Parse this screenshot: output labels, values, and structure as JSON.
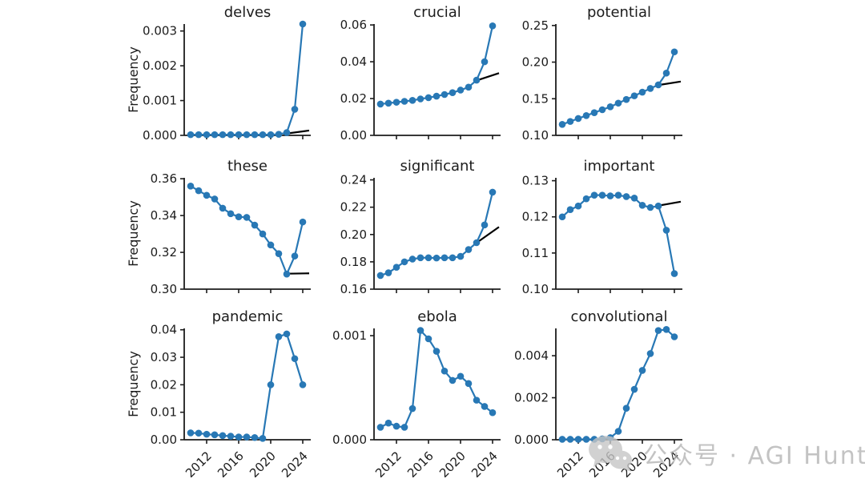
{
  "figure": {
    "ylabel": "Frequency",
    "xticks": [
      2012,
      2016,
      2020,
      2024
    ],
    "xticklabels": [
      "2012",
      "2016",
      "2020",
      "2024"
    ],
    "xlim": [
      2009.2,
      2025
    ],
    "colors": {
      "line": "#2878b5",
      "marker": "#2878b5",
      "trend": "#000000",
      "text": "#1c1c1c",
      "watermark": "#b5b5b5",
      "watermark_icon": "#c6c6c6",
      "background": "#ffffff"
    }
  },
  "watermark": {
    "icon": "wechat-icon",
    "text": "公众号 · AGI Hunt"
  },
  "chart_data": [
    {
      "type": "line",
      "title": "delves",
      "ylabel": "Frequency",
      "x": [
        2010,
        2011,
        2012,
        2013,
        2014,
        2015,
        2016,
        2017,
        2018,
        2019,
        2020,
        2021,
        2022,
        2023,
        2024
      ],
      "values": [
        2e-05,
        2e-05,
        2e-05,
        2e-05,
        2e-05,
        2e-05,
        2e-05,
        2e-05,
        2e-05,
        2e-05,
        2e-05,
        3e-05,
        8e-05,
        0.00075,
        0.0032
      ],
      "yticks": [
        0.0,
        0.001,
        0.002,
        0.003
      ],
      "yticklabels": [
        "0.000",
        "0.001",
        "0.002",
        "0.003"
      ],
      "ylim": [
        0,
        0.0032
      ],
      "trend": [
        [
          2021.6,
          4e-05
        ],
        [
          2024.8,
          0.00014
        ]
      ],
      "show_xticklabels": false
    },
    {
      "type": "line",
      "title": "crucial",
      "ylabel": "",
      "x": [
        2010,
        2011,
        2012,
        2013,
        2014,
        2015,
        2016,
        2017,
        2018,
        2019,
        2020,
        2021,
        2022,
        2023,
        2024
      ],
      "values": [
        0.017,
        0.0175,
        0.018,
        0.0185,
        0.019,
        0.0198,
        0.0205,
        0.0213,
        0.0222,
        0.0232,
        0.0246,
        0.0262,
        0.03,
        0.04,
        0.0595
      ],
      "yticks": [
        0.0,
        0.02,
        0.04,
        0.06
      ],
      "yticklabels": [
        "0.00",
        "0.02",
        "0.04",
        "0.06"
      ],
      "ylim": [
        0,
        0.0605
      ],
      "trend": [
        [
          2021.8,
          0.0295
        ],
        [
          2024.8,
          0.0338
        ]
      ],
      "show_xticklabels": false
    },
    {
      "type": "line",
      "title": "potential",
      "ylabel": "",
      "x": [
        2010,
        2011,
        2012,
        2013,
        2014,
        2015,
        2016,
        2017,
        2018,
        2019,
        2020,
        2021,
        2022,
        2023,
        2024
      ],
      "values": [
        0.115,
        0.119,
        0.123,
        0.127,
        0.131,
        0.135,
        0.139,
        0.144,
        0.149,
        0.154,
        0.159,
        0.164,
        0.169,
        0.185,
        0.214
      ],
      "yticks": [
        0.1,
        0.15,
        0.2,
        0.25
      ],
      "yticklabels": [
        "0.10",
        "0.15",
        "0.20",
        "0.25"
      ],
      "ylim": [
        0.1,
        0.252
      ],
      "trend": [
        [
          2021.9,
          0.1685
        ],
        [
          2024.8,
          0.1735
        ]
      ],
      "show_xticklabels": false
    },
    {
      "type": "line",
      "title": "these",
      "ylabel": "Frequency",
      "x": [
        2010,
        2011,
        2012,
        2013,
        2014,
        2015,
        2016,
        2017,
        2018,
        2019,
        2020,
        2021,
        2022,
        2023,
        2024
      ],
      "values": [
        0.356,
        0.3535,
        0.351,
        0.349,
        0.344,
        0.341,
        0.3393,
        0.339,
        0.3348,
        0.33,
        0.324,
        0.3193,
        0.3082,
        0.318,
        0.3365
      ],
      "yticks": [
        0.3,
        0.32,
        0.34,
        0.36
      ],
      "yticklabels": [
        "0.30",
        "0.32",
        "0.34",
        "0.36"
      ],
      "ylim": [
        0.3,
        0.3605
      ],
      "trend": [
        [
          2022.0,
          0.3084
        ],
        [
          2024.8,
          0.3086
        ]
      ],
      "show_xticklabels": false
    },
    {
      "type": "line",
      "title": "significant",
      "ylabel": "",
      "x": [
        2010,
        2011,
        2012,
        2013,
        2014,
        2015,
        2016,
        2017,
        2018,
        2019,
        2020,
        2021,
        2022,
        2023,
        2024
      ],
      "values": [
        0.17,
        0.172,
        0.176,
        0.18,
        0.182,
        0.183,
        0.183,
        0.1828,
        0.183,
        0.183,
        0.184,
        0.189,
        0.194,
        0.207,
        0.231
      ],
      "yticks": [
        0.16,
        0.18,
        0.2,
        0.22,
        0.24
      ],
      "yticklabels": [
        "0.16",
        "0.18",
        "0.20",
        "0.22",
        "0.24"
      ],
      "ylim": [
        0.16,
        0.2415
      ],
      "trend": [
        [
          2021.9,
          0.1935
        ],
        [
          2024.8,
          0.2055
        ]
      ],
      "show_xticklabels": false
    },
    {
      "type": "line",
      "title": "important",
      "ylabel": "",
      "x": [
        2010,
        2011,
        2012,
        2013,
        2014,
        2015,
        2016,
        2017,
        2018,
        2019,
        2020,
        2021,
        2022,
        2023,
        2024
      ],
      "values": [
        0.12,
        0.122,
        0.123,
        0.125,
        0.126,
        0.126,
        0.1258,
        0.126,
        0.1256,
        0.1252,
        0.1232,
        0.1226,
        0.123,
        0.1163,
        0.1043
      ],
      "yticks": [
        0.1,
        0.11,
        0.12,
        0.13
      ],
      "yticklabels": [
        "0.10",
        "0.11",
        "0.12",
        "0.13"
      ],
      "ylim": [
        0.1,
        0.1308
      ],
      "trend": [
        [
          2022.0,
          0.1231
        ],
        [
          2024.8,
          0.1242
        ]
      ],
      "show_xticklabels": false
    },
    {
      "type": "line",
      "title": "pandemic",
      "ylabel": "Frequency",
      "x": [
        2010,
        2011,
        2012,
        2013,
        2014,
        2015,
        2016,
        2017,
        2018,
        2019,
        2020,
        2021,
        2022,
        2023,
        2024
      ],
      "values": [
        0.0025,
        0.0024,
        0.002,
        0.0018,
        0.0015,
        0.0013,
        0.001,
        0.001,
        0.0008,
        0.0005,
        0.02,
        0.0375,
        0.0385,
        0.0295,
        0.02
      ],
      "yticks": [
        0.0,
        0.01,
        0.02,
        0.03,
        0.04
      ],
      "yticklabels": [
        "0.00",
        "0.01",
        "0.02",
        "0.03",
        "0.04"
      ],
      "ylim": [
        0,
        0.0405
      ],
      "trend": null,
      "show_xticklabels": true
    },
    {
      "type": "line",
      "title": "ebola",
      "ylabel": "",
      "x": [
        2010,
        2011,
        2012,
        2013,
        2014,
        2015,
        2016,
        2017,
        2018,
        2019,
        2020,
        2021,
        2022,
        2023,
        2024
      ],
      "values": [
        0.00012,
        0.00016,
        0.00013,
        0.00012,
        0.0003,
        0.00105,
        0.00097,
        0.00085,
        0.00066,
        0.00057,
        0.00061,
        0.00054,
        0.00038,
        0.00032,
        0.00026
      ],
      "yticks": [
        0.0,
        0.001
      ],
      "yticklabels": [
        "0.000",
        "0.001"
      ],
      "ylim": [
        0,
        0.00107
      ],
      "trend": null,
      "show_xticklabels": true
    },
    {
      "type": "line",
      "title": "convolutional",
      "ylabel": "",
      "x": [
        2010,
        2011,
        2012,
        2013,
        2014,
        2015,
        2016,
        2017,
        2018,
        2019,
        2020,
        2021,
        2022,
        2023,
        2024
      ],
      "values": [
        2e-05,
        2e-05,
        2e-05,
        2e-05,
        2e-05,
        4e-05,
        0.0001,
        0.0004,
        0.0015,
        0.0024,
        0.0033,
        0.0041,
        0.0052,
        0.00525,
        0.0049
      ],
      "yticks": [
        0.0,
        0.002,
        0.004
      ],
      "yticklabels": [
        "0.000",
        "0.002",
        "0.004"
      ],
      "ylim": [
        0,
        0.0053
      ],
      "trend": null,
      "show_xticklabels": true
    }
  ]
}
